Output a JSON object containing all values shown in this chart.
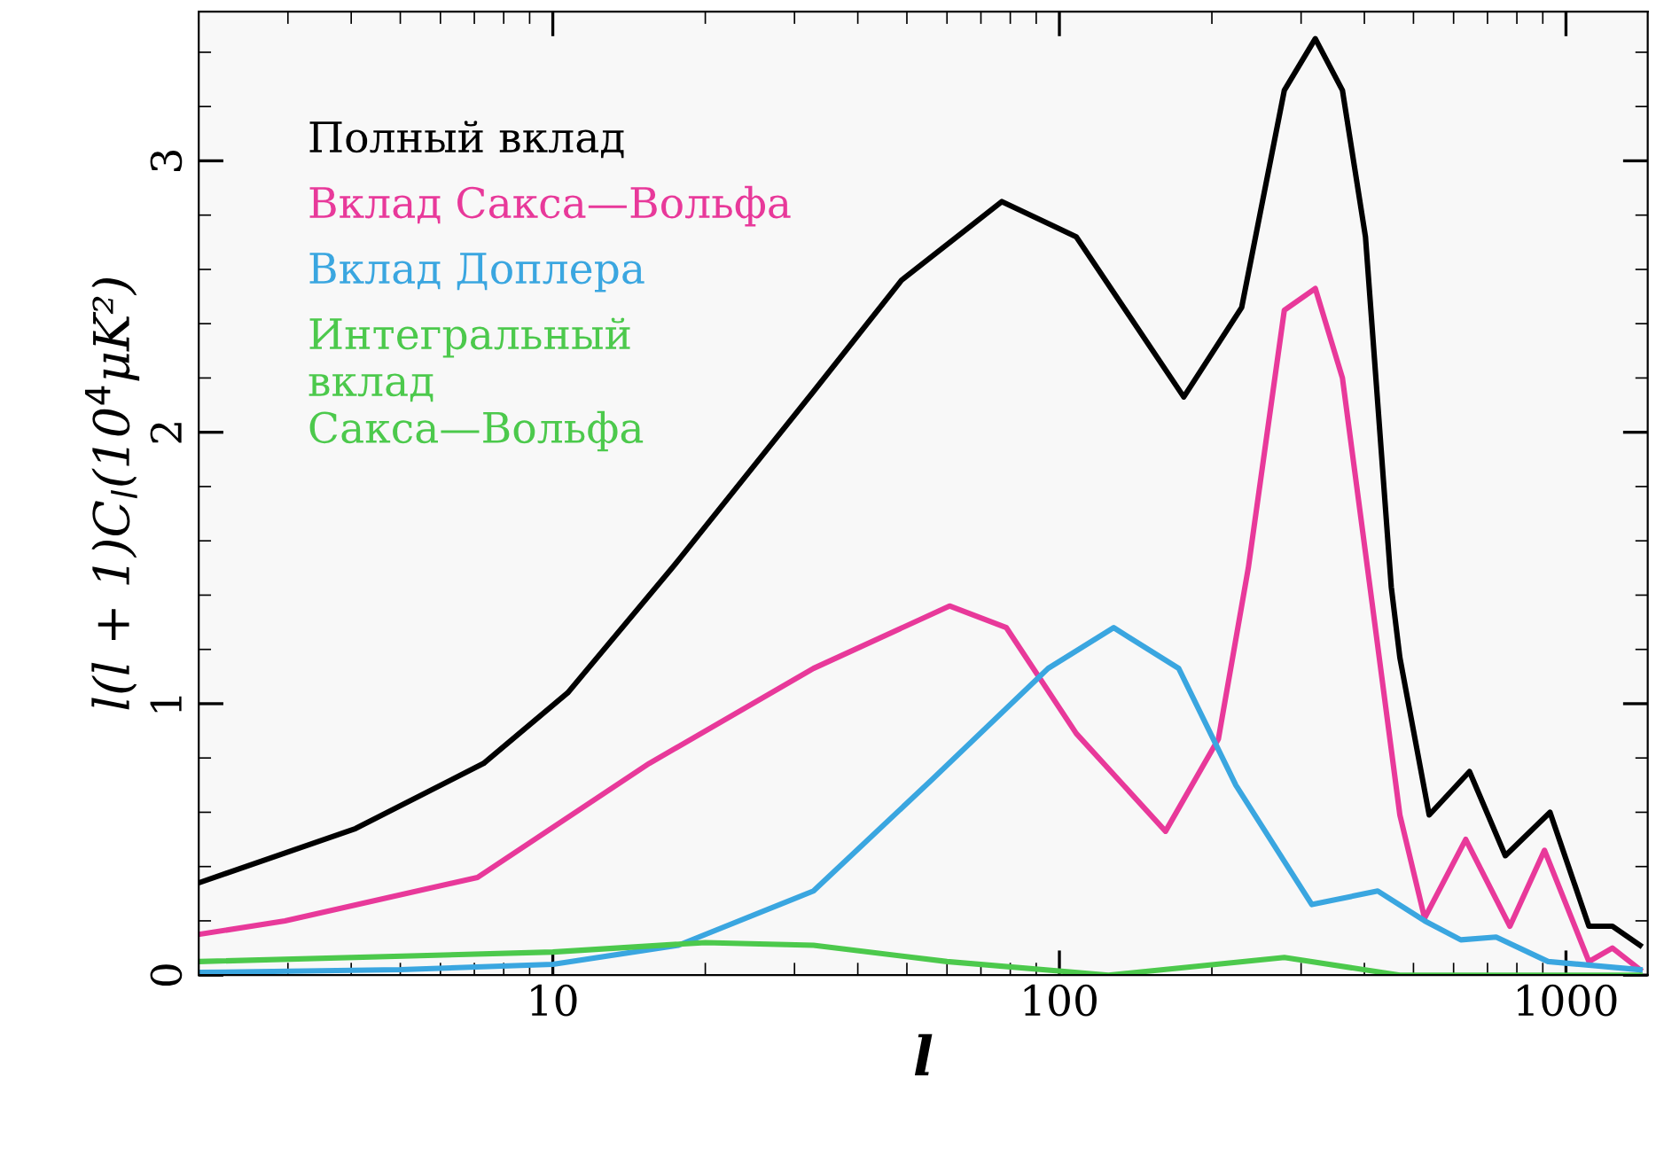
{
  "chart_data": {
    "type": "line",
    "xlabel": "l",
    "ylabel": "l(l + 1)C$_{l}$(10$^{4}$μK²)",
    "log": "x",
    "xlim": [
      2,
      1450
    ],
    "xticks": [
      10,
      100,
      1000
    ],
    "ylim": [
      0,
      3.55
    ],
    "yticks": [
      0,
      1,
      2,
      3
    ],
    "legend": "top left",
    "grid": false,
    "series": [
      {
        "name": "Полный вклад",
        "color": "#000000",
        "x": [
          2,
          4.08,
          7.3,
          10.7,
          17.2,
          32.7,
          48.8,
          77,
          108,
          176,
          229,
          278,
          320,
          362,
          402,
          452,
          470,
          537,
          645,
          759,
          930,
          1110,
          1235,
          1400
        ],
        "values": [
          0.34,
          0.54,
          0.78,
          1.04,
          1.5,
          2.15,
          2.56,
          2.85,
          2.72,
          2.13,
          2.46,
          3.26,
          3.45,
          3.26,
          2.72,
          1.43,
          1.17,
          0.59,
          0.75,
          0.44,
          0.6,
          0.18,
          0.18,
          0.11
        ]
      },
      {
        "name": "Вклад Сакса—Вольфа",
        "color": "#e8399a",
        "x": [
          2,
          2.96,
          7.1,
          15.5,
          32.7,
          60.7,
          78.6,
          108,
          162,
          206,
          236,
          278,
          320,
          362,
          409,
          470,
          526,
          634,
          775,
          907,
          1110,
          1235,
          1400
        ],
        "values": [
          0.15,
          0.2,
          0.36,
          0.78,
          1.13,
          1.36,
          1.28,
          0.89,
          0.53,
          0.87,
          1.5,
          2.45,
          2.53,
          2.2,
          1.45,
          0.59,
          0.21,
          0.5,
          0.18,
          0.46,
          0.05,
          0.1,
          0.02
        ]
      },
      {
        "name": "Вклад Доплера",
        "color": "#3aa6e0",
        "x": [
          2,
          5,
          10,
          17.7,
          32.7,
          56,
          95,
          128,
          172,
          223,
          315,
          425,
          526,
          620,
          728,
          922,
          1400
        ],
        "values": [
          0.01,
          0.02,
          0.04,
          0.11,
          0.31,
          0.72,
          1.13,
          1.28,
          1.13,
          0.7,
          0.26,
          0.31,
          0.2,
          0.13,
          0.14,
          0.05,
          0.02
        ]
      },
      {
        "name": "Интегральный\nвклад\nСакса—Вольфа",
        "color": "#4cc94c",
        "x": [
          2,
          10,
          20,
          32.7,
          60,
          125,
          278,
          470,
          1400
        ],
        "values": [
          0.05,
          0.085,
          0.12,
          0.11,
          0.05,
          0.0,
          0.065,
          0.0,
          0.0
        ]
      }
    ]
  }
}
